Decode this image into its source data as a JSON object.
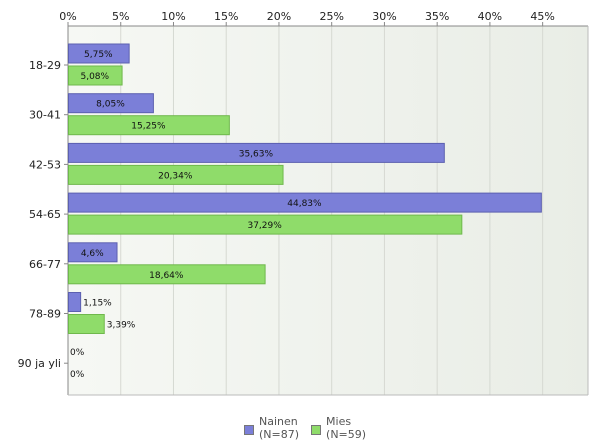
{
  "chart_data": {
    "type": "bar",
    "orientation": "horizontal",
    "categories": [
      "18-29",
      "30-41",
      "42-53",
      "54-65",
      "66-77",
      "78-89",
      "90 ja yli"
    ],
    "series": [
      {
        "name": "Nainen",
        "sub": "(N=87)",
        "color": "#7b7fd8",
        "values": [
          5.75,
          8.05,
          35.63,
          44.83,
          4.6,
          1.15,
          0
        ],
        "labels": [
          "5,75%",
          "8,05%",
          "35,63%",
          "44,83%",
          "4,6%",
          "1,15%",
          "0%"
        ]
      },
      {
        "name": "Mies",
        "sub": "(N=59)",
        "color": "#8fdc6a",
        "values": [
          5.08,
          15.25,
          20.34,
          37.29,
          18.64,
          3.39,
          0
        ],
        "labels": [
          "5,08%",
          "15,25%",
          "20,34%",
          "37,29%",
          "18,64%",
          "3,39%",
          "0%"
        ]
      }
    ],
    "xticks": [
      "0%",
      "5%",
      "10%",
      "15%",
      "20%",
      "25%",
      "30%",
      "35%",
      "40%",
      "45%"
    ],
    "xlim": [
      0,
      49.3
    ],
    "xaxis_position": "top",
    "grid": true,
    "legend_position": "bottom-center"
  }
}
